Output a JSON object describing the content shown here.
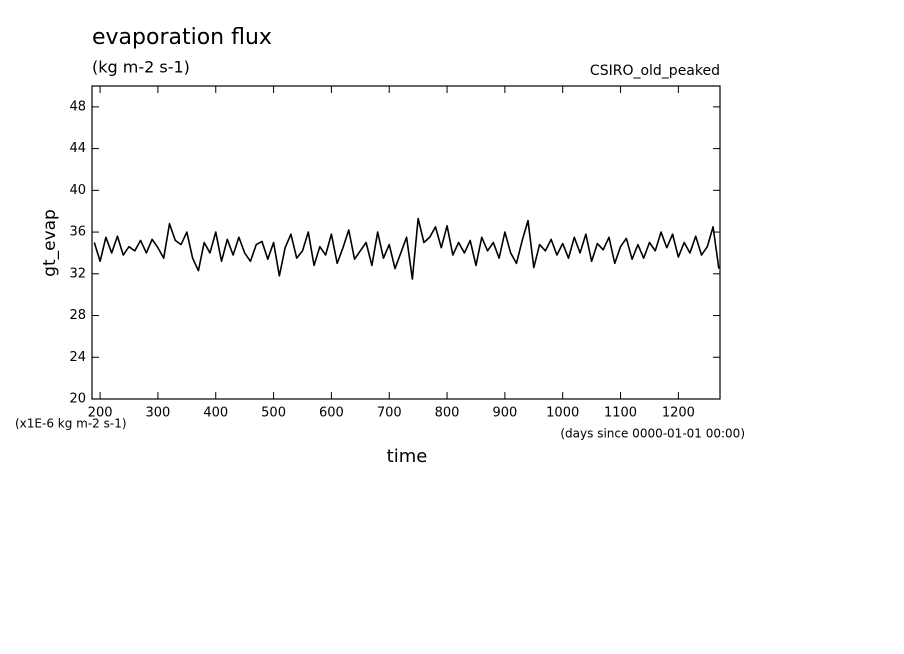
{
  "chart_data": {
    "type": "line",
    "title": "evaporation flux",
    "subtitle": "(kg m-2 s-1)",
    "dataset_label": "CSIRO_old_peaked",
    "y_label": "gt_evap",
    "x_label": "time",
    "y_units_note": "(x1E-6 kg m-2 s-1)",
    "x_units_note": "(days since 0000-01-01 00:00)",
    "xlim": [
      186,
      1272
    ],
    "ylim": [
      20,
      50
    ],
    "xticks": [
      200,
      300,
      400,
      500,
      600,
      700,
      800,
      900,
      1000,
      1100,
      1200
    ],
    "yticks": [
      20,
      24,
      28,
      32,
      36,
      40,
      44,
      48
    ],
    "color": "#000000",
    "x": [
      190,
      200,
      210,
      220,
      230,
      240,
      250,
      260,
      270,
      280,
      290,
      300,
      310,
      320,
      330,
      340,
      350,
      360,
      370,
      380,
      390,
      400,
      410,
      420,
      430,
      440,
      450,
      460,
      470,
      480,
      490,
      500,
      510,
      520,
      530,
      540,
      550,
      560,
      570,
      580,
      590,
      600,
      610,
      620,
      630,
      640,
      650,
      660,
      670,
      680,
      690,
      700,
      710,
      720,
      730,
      740,
      750,
      760,
      770,
      780,
      790,
      800,
      810,
      820,
      830,
      840,
      850,
      860,
      870,
      880,
      890,
      900,
      910,
      920,
      930,
      940,
      950,
      960,
      970,
      980,
      990,
      1000,
      1010,
      1020,
      1030,
      1040,
      1050,
      1060,
      1070,
      1080,
      1090,
      1100,
      1110,
      1120,
      1130,
      1140,
      1150,
      1160,
      1170,
      1180,
      1190,
      1200,
      1210,
      1220,
      1230,
      1240,
      1250,
      1260,
      1270
    ],
    "values": [
      35.0,
      33.2,
      35.5,
      34.0,
      35.6,
      33.8,
      34.6,
      34.2,
      35.2,
      34.0,
      35.3,
      34.5,
      33.5,
      36.8,
      35.2,
      34.8,
      36.0,
      33.5,
      32.3,
      35.0,
      34.0,
      36.0,
      33.2,
      35.3,
      33.8,
      35.5,
      34.0,
      33.2,
      34.8,
      35.1,
      33.4,
      35.0,
      31.8,
      34.5,
      35.8,
      33.5,
      34.2,
      36.0,
      32.8,
      34.6,
      33.8,
      35.8,
      33.0,
      34.5,
      36.2,
      33.4,
      34.2,
      35.0,
      32.8,
      36.0,
      33.5,
      34.8,
      32.5,
      34.0,
      35.5,
      31.5,
      37.3,
      35.0,
      35.5,
      36.5,
      34.5,
      36.6,
      33.8,
      35.0,
      34.0,
      35.2,
      32.8,
      35.5,
      34.2,
      35.0,
      33.5,
      36.0,
      34.0,
      33.0,
      35.2,
      37.1,
      32.6,
      34.8,
      34.2,
      35.3,
      33.8,
      34.9,
      33.5,
      35.5,
      34.0,
      35.8,
      33.2,
      34.9,
      34.3,
      35.5,
      33.0,
      34.6,
      35.4,
      33.4,
      34.8,
      33.5,
      35.0,
      34.2,
      36.0,
      34.5,
      35.8,
      33.6,
      35.0,
      34.0,
      35.6,
      33.8,
      34.6,
      36.5,
      32.5
    ]
  }
}
